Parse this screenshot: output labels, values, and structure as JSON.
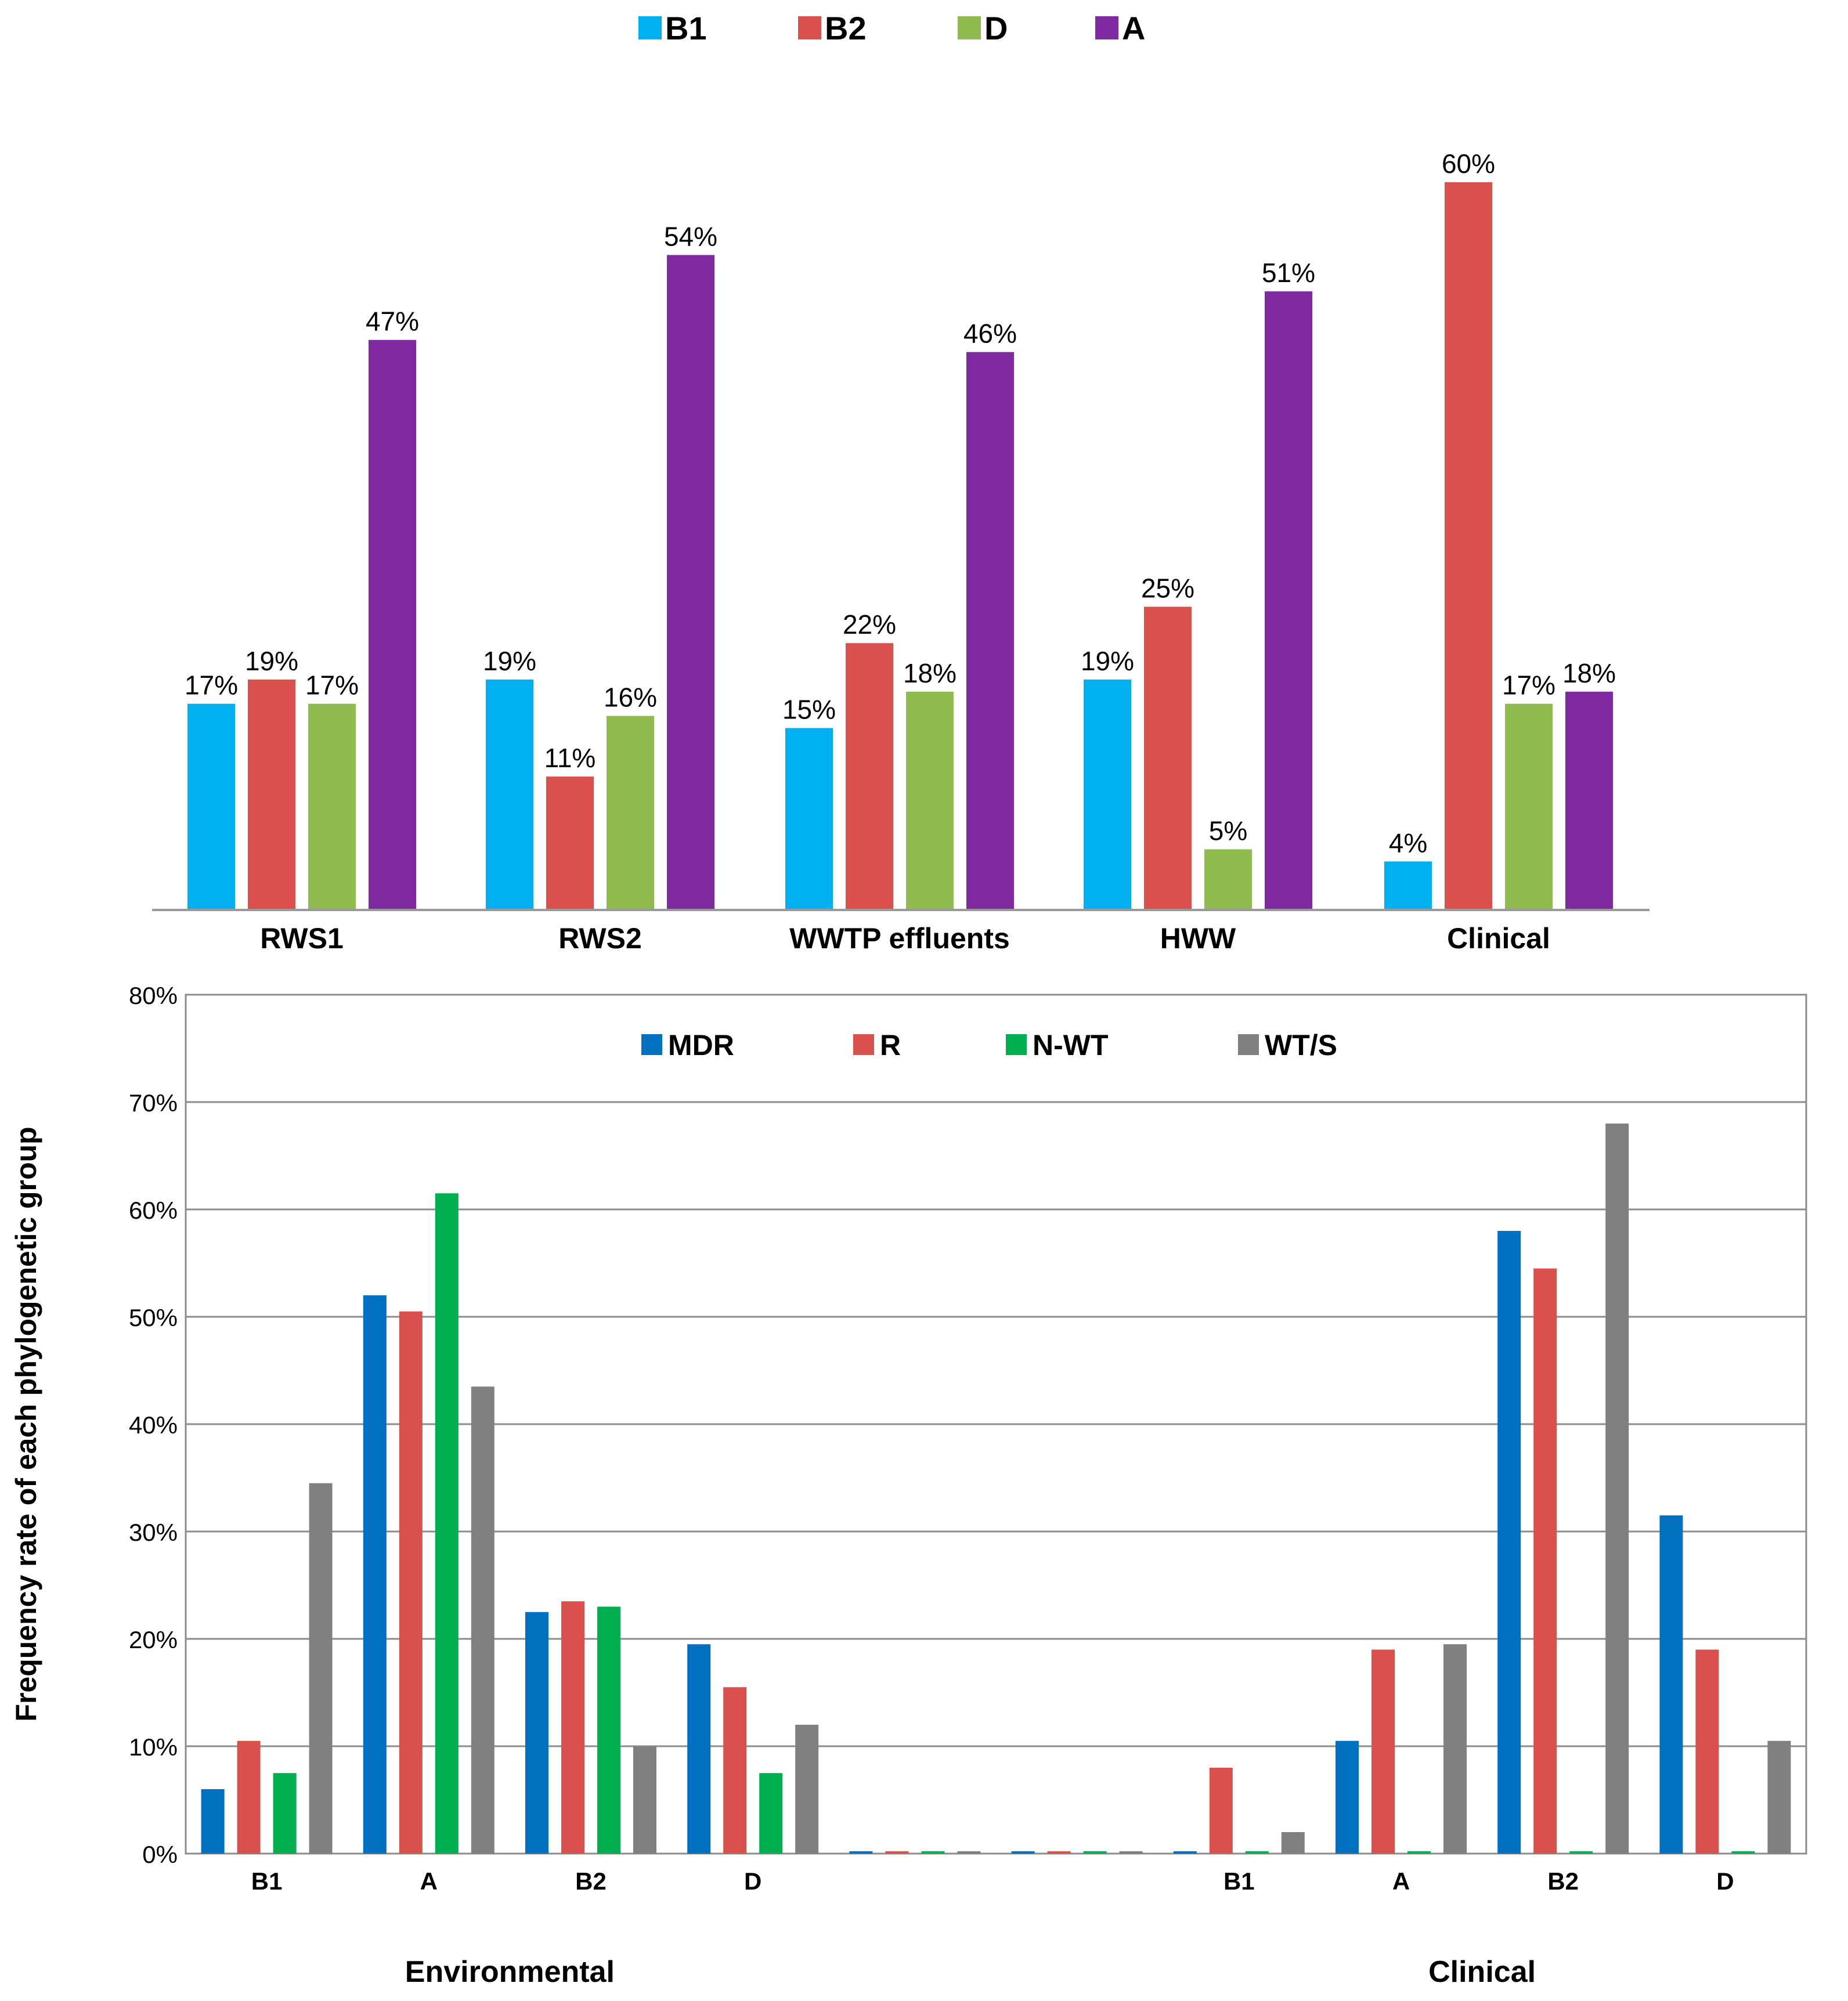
{
  "top_chart": {
    "chart_data": {
      "type": "bar",
      "categories": [
        "RWS1",
        "RWS2",
        "WWTP effluents",
        "HWW",
        "Clinical"
      ],
      "series": [
        {
          "name": "B1",
          "color": "#00b0f0",
          "values": [
            17,
            19,
            15,
            19,
            4
          ],
          "labels": [
            "17%",
            "19%",
            "15%",
            "19%",
            "4%"
          ]
        },
        {
          "name": "B2",
          "color": "#d9504c",
          "values": [
            19,
            11,
            22,
            25,
            60
          ],
          "labels": [
            "19%",
            "11%",
            "22%",
            "25%",
            "60%"
          ]
        },
        {
          "name": "D",
          "color": "#8fbb4f",
          "values": [
            17,
            16,
            18,
            5,
            17
          ],
          "labels": [
            "17%",
            "16%",
            "18%",
            "5%",
            "17%"
          ]
        },
        {
          "name": "A",
          "color": "#7f2aa0",
          "values": [
            47,
            54,
            46,
            51,
            18
          ],
          "labels": [
            "47%",
            "54%",
            "46%",
            "51%",
            "18%"
          ]
        }
      ],
      "ylim": [
        0,
        60
      ],
      "legend": "top-center",
      "grid": false
    }
  },
  "bottom_chart": {
    "chart_data": {
      "type": "bar",
      "groups": [
        "Environmental",
        "Clinical"
      ],
      "categories": [
        "B1",
        "A",
        "B2",
        "D",
        "",
        "",
        "B1",
        "A",
        "B2",
        "D"
      ],
      "series": [
        {
          "name": "MDR",
          "color": "#0070c0",
          "values": [
            6,
            52,
            22.5,
            19.5,
            0,
            0,
            0,
            10.5,
            58,
            31.5
          ]
        },
        {
          "name": "R",
          "color": "#d9504c",
          "values": [
            10.5,
            50.5,
            23.5,
            15.5,
            0,
            0,
            8,
            19,
            54.5,
            19
          ]
        },
        {
          "name": "N-WT",
          "color": "#00b050",
          "values": [
            7.5,
            61.5,
            23,
            7.5,
            0,
            0,
            0,
            0,
            0,
            0
          ]
        },
        {
          "name": "WT/S",
          "color": "#808080",
          "values": [
            34.5,
            43.5,
            10,
            12,
            0,
            0,
            2,
            19.5,
            68,
            10.5
          ]
        }
      ],
      "ylabel": "Frequency rate of each phylogenetic group",
      "yticks": [
        "0%",
        "10%",
        "20%",
        "30%",
        "40%",
        "50%",
        "60%",
        "70%",
        "80%"
      ],
      "ylim": [
        0,
        80
      ],
      "legend": "top-center",
      "grid": true
    }
  }
}
